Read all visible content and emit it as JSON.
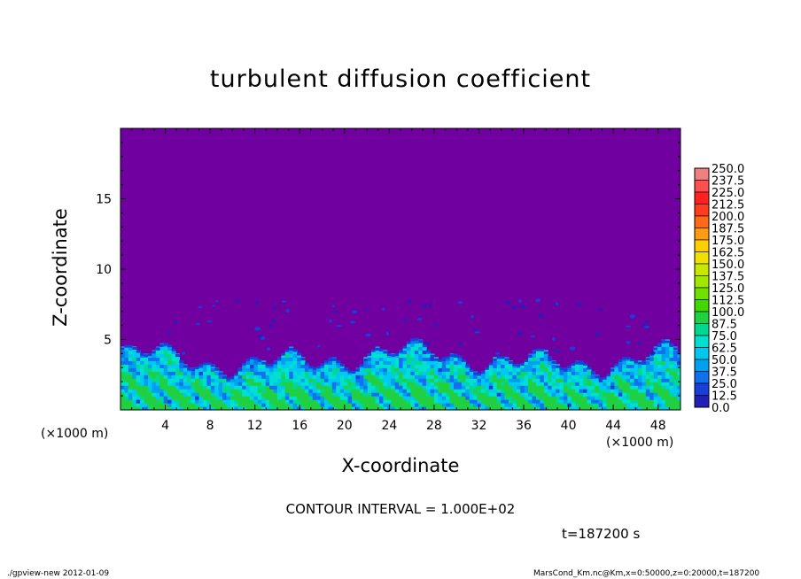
{
  "chart_data": {
    "type": "heatmap",
    "title": "turbulent diffusion coefficient",
    "xlabel": "X-coordinate",
    "ylabel": "Z-coordinate",
    "x_unit_left": "(×1000 m)",
    "x_unit_right": "(×1000 m)",
    "xlim": [
      0,
      50
    ],
    "ylim": [
      0,
      20
    ],
    "x_ticks": [
      4,
      8,
      12,
      16,
      20,
      24,
      28,
      32,
      36,
      40,
      44,
      48
    ],
    "y_ticks": [
      5,
      10,
      15
    ],
    "colorbar": {
      "levels": [
        "250.0",
        "237.5",
        "225.0",
        "212.5",
        "200.0",
        "187.5",
        "175.0",
        "162.5",
        "150.0",
        "137.5",
        "125.0",
        "112.5",
        "100.0",
        "87.5",
        "75.0",
        "62.5",
        "50.0",
        "37.5",
        "25.0",
        "12.5",
        "0.0"
      ],
      "colors": [
        "#f08080",
        "#ff5050",
        "#ff2020",
        "#ff3c1e",
        "#ff6a1a",
        "#ff9a14",
        "#ffd000",
        "#f0e000",
        "#c8e800",
        "#a0e800",
        "#70e000",
        "#40d800",
        "#20d040",
        "#00d890",
        "#00e0d0",
        "#00c8f0",
        "#00a0f0",
        "#1070ee",
        "#1840d8",
        "#2020b8",
        "#7000a0"
      ]
    },
    "background_value_color": "#7000a0",
    "boundary_layer_top_km": 3.5,
    "contour_interval": "CONTOUR INTERVAL = 1.000E+02",
    "time": "t=187200 s"
  },
  "footer": {
    "left": "./gpview-new  2012-01-09",
    "right": "MarsCond_Km.nc@Km,x=0:50000,z=0:20000,t=187200"
  }
}
